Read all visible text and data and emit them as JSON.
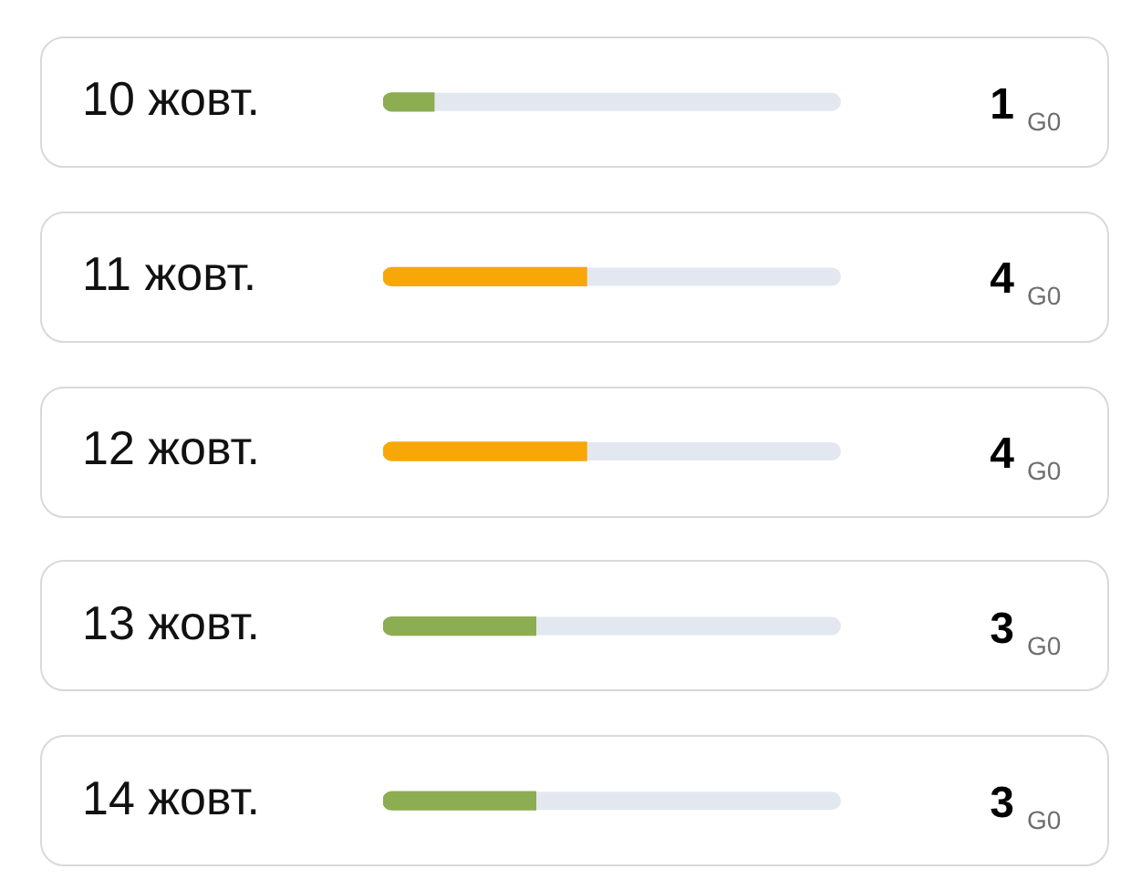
{
  "chart_data": {
    "type": "bar",
    "orientation": "horizontal",
    "categories": [
      "10 жовт.",
      "11 жовт.",
      "12 жовт.",
      "13 жовт.",
      "14 жовт."
    ],
    "values": [
      1,
      4,
      4,
      3,
      3
    ],
    "colors": [
      "#8cad52",
      "#f7a808",
      "#f7a808",
      "#8cad52",
      "#8cad52"
    ],
    "xlim": [
      0,
      9
    ],
    "value_labels": [
      "1 G0",
      "4 G0",
      "4 G0",
      "3 G0",
      "3 G0"
    ],
    "tick_labels": "y",
    "legend": false
  }
}
